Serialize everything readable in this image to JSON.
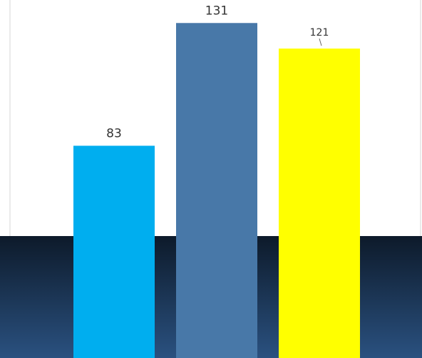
{
  "chart_data": {
    "type": "bar",
    "title": "",
    "xlabel": "",
    "ylabel": "",
    "categories": [
      "",
      "",
      ""
    ],
    "values": [
      83,
      131,
      121
    ],
    "value_labels": [
      "83",
      "131",
      "121"
    ],
    "ylim": [
      0,
      140
    ],
    "grid": false,
    "legend": "none",
    "bar_colors": [
      "#00aeef",
      "#4878a8",
      "#ffff00"
    ],
    "background_band": {
      "gradient_top": "#0d1a2a",
      "gradient_bottom": "#2a5180"
    },
    "axis_line_color": "#d4d4d4"
  }
}
